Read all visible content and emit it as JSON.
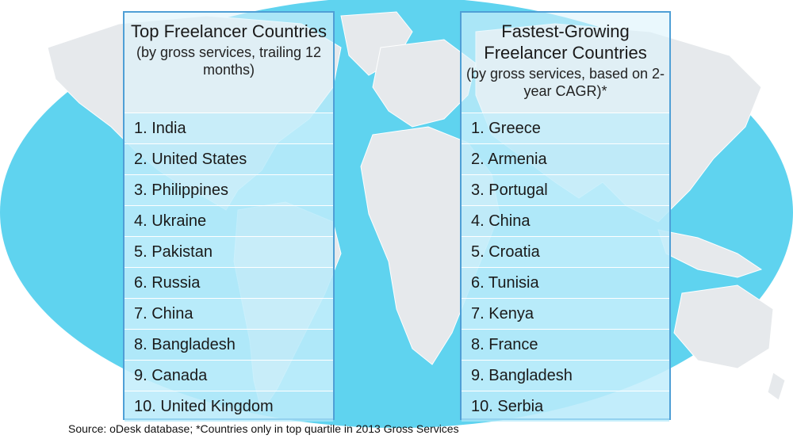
{
  "colors": {
    "ocean": "#5fd3ef",
    "land": "#e6e9ec",
    "panel_border": "#4f9fd6",
    "row_background": "#c8eefa"
  },
  "left_panel": {
    "title": "Top Freelancer Countries",
    "subtitle": "(by gross services, trailing 12 months)",
    "items": [
      "1. India",
      "2. United States",
      "3. Philippines",
      "4. Ukraine",
      "5. Pakistan",
      "6. Russia",
      "7. China",
      "8. Bangladesh",
      "9. Canada",
      "10. United Kingdom"
    ]
  },
  "right_panel": {
    "title": "Fastest-Growing Freelancer Countries",
    "subtitle": "(by gross services, based on 2-year CAGR)*",
    "items": [
      "1. Greece",
      "2. Armenia",
      "3. Portugal",
      "4. China",
      "5. Croatia",
      "6. Tunisia",
      "7. Kenya",
      "8. France",
      "9. Bangladesh",
      "10. Serbia"
    ]
  },
  "footer": {
    "source": "Source: oDesk database; *Countries only in top quartile in 2013 Gross Services"
  }
}
